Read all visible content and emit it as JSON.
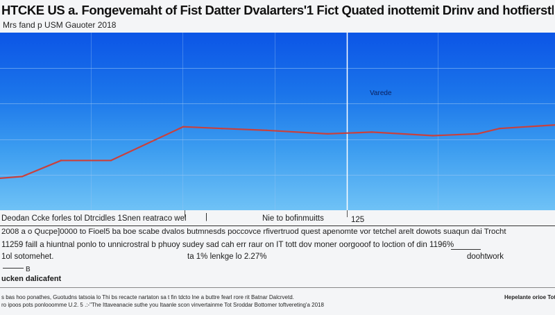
{
  "title": "HTCKE US  a. Fongevemaht of Fist Datter Dvalarters'1 Fict Quated inottemit Drinv and hotfiersth",
  "subtitle": "Mrs fand  p USM Gauoter 2018",
  "annotation": "Varede",
  "body_lines": {
    "left_header": "Deodan Ccke forles tol Dtrcidles 1Snen reatraco wel",
    "left_header_tick": "|",
    "mid_header": "Nie to bofinmuitts",
    "mid_header_num": "125",
    "line1": "2008  a o Qucpe]0000 to Fioel5 ba boe scabe dvalos butmnesds poccovce rfivertruod quest apenomte vor tetchel arelt dowots suaqun dai  Trocht",
    "line2": "11259 faill  a hiuntnal ponlo to unnicrostral b phuoy sudey sad cah err raur on IT tott dov moner oorgooof to loction of din 1196%",
    "line3_left": "1ol sotomehet.",
    "line3_mid": "ta 1% lenkge lo 2.27%",
    "line3_right": "doohtwork"
  },
  "marker_b": "B",
  "section_label": "ucken dalicafent",
  "footer": {
    "line1": "s bas hoo ponathes, Guotudns tatsoia lo Thi bs recacte nartaton sa t fin tdcto lne a buttre  fearl rore rit Batnar Dalcrvetd.",
    "line2": "ro ipoos pots ponlooomme U.2. 5 .:-\"The Ittaveanacie suthe you Itaanle scon vinvertainme Tot Sroddar Bottomer toftvereting'a 2018",
    "right": "Hepelante orioe Totoelve"
  },
  "colors": {
    "line": "#c8413d",
    "plot_top": "#0c55e6",
    "plot_bottom": "#6fc2f6",
    "grid": "#9cc6f3",
    "divider": "#ffffff"
  },
  "chart_data": {
    "type": "line",
    "title": "HTCKE US  a. Fongevemaht of Fist Datter Dvalarters'1 Fict Quated inottemit Drinv and hotfiersth",
    "xlabel": "",
    "ylabel": "",
    "x": [
      0,
      4,
      11,
      20,
      33,
      40,
      48,
      59,
      67,
      78,
      86,
      90,
      100
    ],
    "values": [
      18,
      19,
      28,
      28,
      47,
      46,
      45,
      43,
      44,
      42,
      43,
      46,
      48
    ],
    "xlim": [
      0,
      100
    ],
    "ylim": [
      0,
      100
    ],
    "grid": true,
    "legend": "none"
  }
}
